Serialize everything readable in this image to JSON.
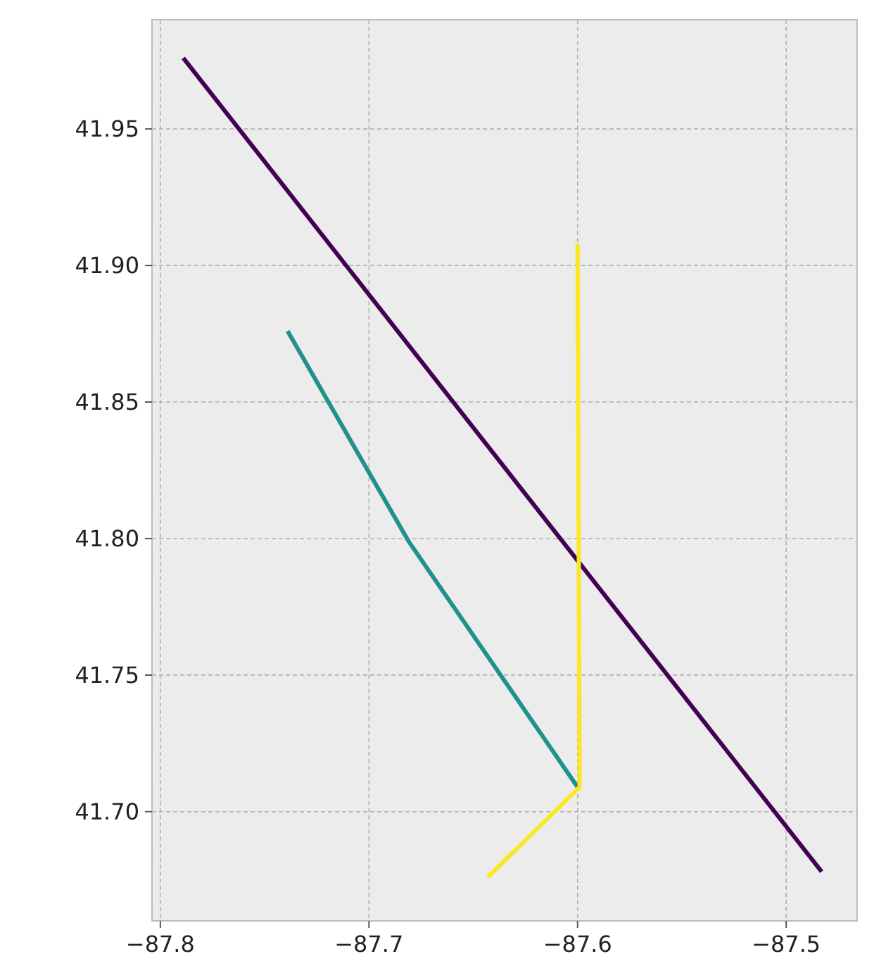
{
  "chart_data": {
    "type": "line",
    "xlim": [
      -87.804,
      -87.466
    ],
    "ylim": [
      41.66,
      41.99
    ],
    "xticks": [
      {
        "value": -87.8,
        "label": "−87.8"
      },
      {
        "value": -87.7,
        "label": "−87.7"
      },
      {
        "value": -87.6,
        "label": "−87.6"
      },
      {
        "value": -87.5,
        "label": "−87.5"
      }
    ],
    "yticks": [
      {
        "value": 41.7,
        "label": "41.70"
      },
      {
        "value": 41.75,
        "label": "41.75"
      },
      {
        "value": 41.8,
        "label": "41.80"
      },
      {
        "value": 41.85,
        "label": "41.85"
      },
      {
        "value": 41.9,
        "label": "41.90"
      },
      {
        "value": 41.95,
        "label": "41.95"
      }
    ],
    "grid": true,
    "marker": "none",
    "line_style": "solid",
    "series": [
      {
        "color": "#440154",
        "x": [
          -87.789,
          -87.483
        ],
        "values": [
          41.976,
          41.678
        ]
      },
      {
        "color": "#21918c",
        "x": [
          -87.739,
          -87.681,
          -87.6
        ],
        "values": [
          41.876,
          41.799,
          41.709
        ]
      },
      {
        "color": "#fde725",
        "x": [
          -87.6,
          -87.599,
          -87.643
        ],
        "values": [
          41.908,
          41.709,
          41.676
        ]
      }
    ]
  }
}
